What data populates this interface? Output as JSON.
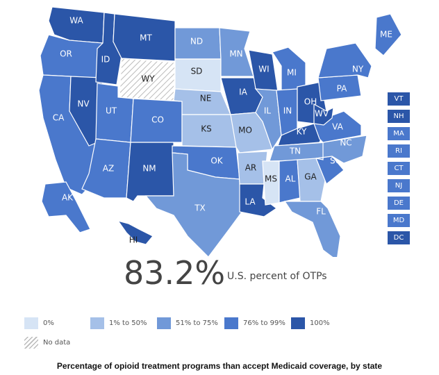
{
  "colors": {
    "0%": "#d6e4f5",
    "1-50%": "#a5c0e8",
    "51-75%": "#7199d8",
    "76-99%": "#4a78cc",
    "100%": "#2b56a8",
    "no-data": "hatch"
  },
  "states": [
    {
      "abbr": "WA",
      "cat": "100%"
    },
    {
      "abbr": "OR",
      "cat": "76-99%"
    },
    {
      "abbr": "CA",
      "cat": "76-99%"
    },
    {
      "abbr": "NV",
      "cat": "100%"
    },
    {
      "abbr": "ID",
      "cat": "100%"
    },
    {
      "abbr": "MT",
      "cat": "100%"
    },
    {
      "abbr": "WY",
      "cat": "no-data"
    },
    {
      "abbr": "UT",
      "cat": "76-99%"
    },
    {
      "abbr": "CO",
      "cat": "76-99%"
    },
    {
      "abbr": "AZ",
      "cat": "76-99%"
    },
    {
      "abbr": "NM",
      "cat": "100%"
    },
    {
      "abbr": "ND",
      "cat": "51-75%"
    },
    {
      "abbr": "SD",
      "cat": "0%"
    },
    {
      "abbr": "NE",
      "cat": "1-50%"
    },
    {
      "abbr": "KS",
      "cat": "1-50%"
    },
    {
      "abbr": "OK",
      "cat": "76-99%"
    },
    {
      "abbr": "TX",
      "cat": "51-75%"
    },
    {
      "abbr": "MN",
      "cat": "51-75%"
    },
    {
      "abbr": "IA",
      "cat": "100%"
    },
    {
      "abbr": "MO",
      "cat": "1-50%"
    },
    {
      "abbr": "AR",
      "cat": "1-50%"
    },
    {
      "abbr": "LA",
      "cat": "100%"
    },
    {
      "abbr": "WI",
      "cat": "100%"
    },
    {
      "abbr": "IL",
      "cat": "51-75%"
    },
    {
      "abbr": "MI",
      "cat": "76-99%"
    },
    {
      "abbr": "IN",
      "cat": "76-99%"
    },
    {
      "abbr": "OH",
      "cat": "100%"
    },
    {
      "abbr": "KY",
      "cat": "100%"
    },
    {
      "abbr": "TN",
      "cat": "51-75%"
    },
    {
      "abbr": "MS",
      "cat": "0%"
    },
    {
      "abbr": "AL",
      "cat": "76-99%"
    },
    {
      "abbr": "GA",
      "cat": "1-50%"
    },
    {
      "abbr": "FL",
      "cat": "51-75%"
    },
    {
      "abbr": "SC",
      "cat": "76-99%"
    },
    {
      "abbr": "NC",
      "cat": "51-75%"
    },
    {
      "abbr": "VA",
      "cat": "76-99%"
    },
    {
      "abbr": "WV",
      "cat": "100%"
    },
    {
      "abbr": "PA",
      "cat": "76-99%"
    },
    {
      "abbr": "NY",
      "cat": "76-99%"
    },
    {
      "abbr": "ME",
      "cat": "76-99%"
    },
    {
      "abbr": "AK",
      "cat": "76-99%"
    },
    {
      "abbr": "HI",
      "cat": "100%"
    }
  ],
  "small_states": [
    {
      "abbr": "VT",
      "cat": "100%"
    },
    {
      "abbr": "NH",
      "cat": "100%"
    },
    {
      "abbr": "MA",
      "cat": "76-99%"
    },
    {
      "abbr": "RI",
      "cat": "76-99%"
    },
    {
      "abbr": "CT",
      "cat": "76-99%"
    },
    {
      "abbr": "NJ",
      "cat": "76-99%"
    },
    {
      "abbr": "DE",
      "cat": "76-99%"
    },
    {
      "abbr": "MD",
      "cat": "76-99%"
    },
    {
      "abbr": "DC",
      "cat": "100%"
    }
  ],
  "summary": {
    "value": "83.2%",
    "label": "U.S. percent of OTPs"
  },
  "legend": [
    {
      "label": "0%",
      "cat": "0%"
    },
    {
      "label": "1% to 50%",
      "cat": "1-50%"
    },
    {
      "label": "51% to 75%",
      "cat": "51-75%"
    },
    {
      "label": "76% to 99%",
      "cat": "76-99%"
    },
    {
      "label": "100%",
      "cat": "100%"
    },
    {
      "label": "No data",
      "cat": "no-data"
    }
  ],
  "caption": "Percentage of opioid treatment programs than accept Medicaid coverage, by state"
}
